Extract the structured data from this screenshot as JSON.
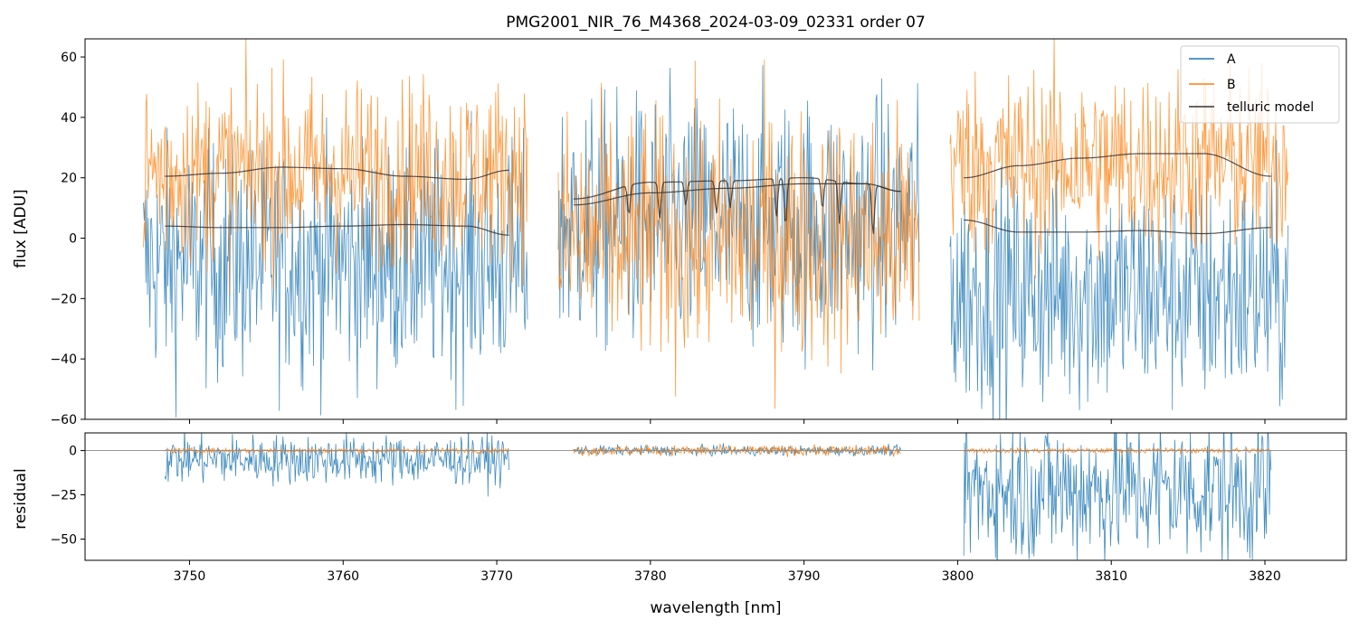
{
  "chart_data": [
    {
      "type": "line",
      "panel": "top",
      "title": "PMG2001_NIR_76_M4368_2024-03-09_02331  order 07",
      "xlabel": "",
      "ylabel": "flux [ADU]",
      "xlim": [
        3743.2,
        3825.3
      ],
      "ylim": [
        -60,
        66
      ],
      "yticks": [
        -60,
        -40,
        -20,
        0,
        20,
        40,
        60
      ],
      "ytick_labels": [
        "−60",
        "−40",
        "−20",
        "0",
        "20",
        "40",
        "60"
      ],
      "xticks": [
        3750,
        3760,
        3770,
        3780,
        3790,
        3800,
        3810,
        3820
      ],
      "legend_position": "upper-right",
      "legend": [
        "A",
        "B",
        "telluric model"
      ],
      "segments": [
        {
          "x_range": [
            3747.0,
            3772.0
          ],
          "A_center": -8,
          "A_spread": 28,
          "B_center": 22,
          "B_spread": 22
        },
        {
          "x_range": [
            3774.0,
            3797.5
          ],
          "A_center": 5,
          "A_spread": 30,
          "B_center": 0,
          "B_spread": 30
        },
        {
          "x_range": [
            3799.5,
            3821.5
          ],
          "A_center": -18,
          "A_spread": 28,
          "B_center": 25,
          "B_spread": 22
        }
      ],
      "telluric_model": [
        {
          "name": "seg1-upper",
          "x": [
            3748.4,
            3752,
            3756,
            3760,
            3764,
            3768,
            3770.8
          ],
          "y": [
            20.5,
            21.5,
            23.5,
            23,
            20.5,
            19.5,
            22.5
          ]
        },
        {
          "name": "seg1-lower",
          "x": [
            3748.4,
            3752,
            3756,
            3760,
            3764,
            3768,
            3770.8
          ],
          "y": [
            4,
            3.5,
            3.5,
            4,
            4.5,
            4,
            1
          ]
        },
        {
          "name": "seg2-upper",
          "x": [
            3775.0,
            3780,
            3785,
            3790,
            3794,
            3796.3
          ],
          "y": [
            13,
            18.5,
            19,
            20,
            18,
            15.5
          ]
        },
        {
          "name": "seg2-lower",
          "x": [
            3775.0,
            3780,
            3785,
            3790,
            3794,
            3796.3
          ],
          "y": [
            11,
            15,
            16.5,
            18,
            18,
            15.5
          ]
        },
        {
          "name": "seg3-upper",
          "x": [
            3800.4,
            3804,
            3808,
            3812,
            3816,
            3820.4
          ],
          "y": [
            20,
            24,
            26.5,
            28,
            28,
            20.5
          ]
        },
        {
          "name": "seg3-lower",
          "x": [
            3800.4,
            3804,
            3808,
            3812,
            3816,
            3820.4
          ],
          "y": [
            6,
            2,
            2,
            2.5,
            1.5,
            3.5
          ]
        }
      ],
      "telluric_absorption_lines": [
        {
          "x": 3778.6,
          "depth": 10
        },
        {
          "x": 3780.6,
          "depth": 12
        },
        {
          "x": 3782.3,
          "depth": 8
        },
        {
          "x": 3784.3,
          "depth": 11
        },
        {
          "x": 3785.2,
          "depth": 9
        },
        {
          "x": 3788.2,
          "depth": 13
        },
        {
          "x": 3788.8,
          "depth": 16
        },
        {
          "x": 3791.2,
          "depth": 10
        },
        {
          "x": 3792.3,
          "depth": 14
        },
        {
          "x": 3794.5,
          "depth": 17
        }
      ]
    },
    {
      "type": "line",
      "panel": "bottom",
      "xlabel": "wavelength [nm]",
      "ylabel": "residual",
      "xlim": [
        3743.2,
        3825.3
      ],
      "ylim": [
        -62,
        10
      ],
      "yticks": [
        -50,
        -25,
        0
      ],
      "ytick_labels": [
        "−50",
        "−25",
        "0"
      ],
      "xticks": [
        3750,
        3760,
        3770,
        3780,
        3790,
        3800,
        3810,
        3820
      ],
      "xtick_labels": [
        "3750",
        "3760",
        "3770",
        "3780",
        "3790",
        "3800",
        "3810",
        "3820"
      ],
      "zero_line": 0,
      "segments": [
        {
          "x_range": [
            3748.4,
            3770.8
          ],
          "A_center": -5,
          "A_spread": 10,
          "B_center": 0,
          "B_spread": 1
        },
        {
          "x_range": [
            3775.0,
            3796.3
          ],
          "A_center": 0,
          "A_spread": 2,
          "B_center": 0,
          "B_spread": 2
        },
        {
          "x_range": [
            3800.4,
            3820.4
          ],
          "A_center": -22,
          "A_spread": 30,
          "B_center": 0,
          "B_spread": 1
        }
      ]
    }
  ],
  "series_colors": {
    "A": "#1f77b4",
    "B": "#ff7f0e",
    "telluric model": "#000000"
  }
}
